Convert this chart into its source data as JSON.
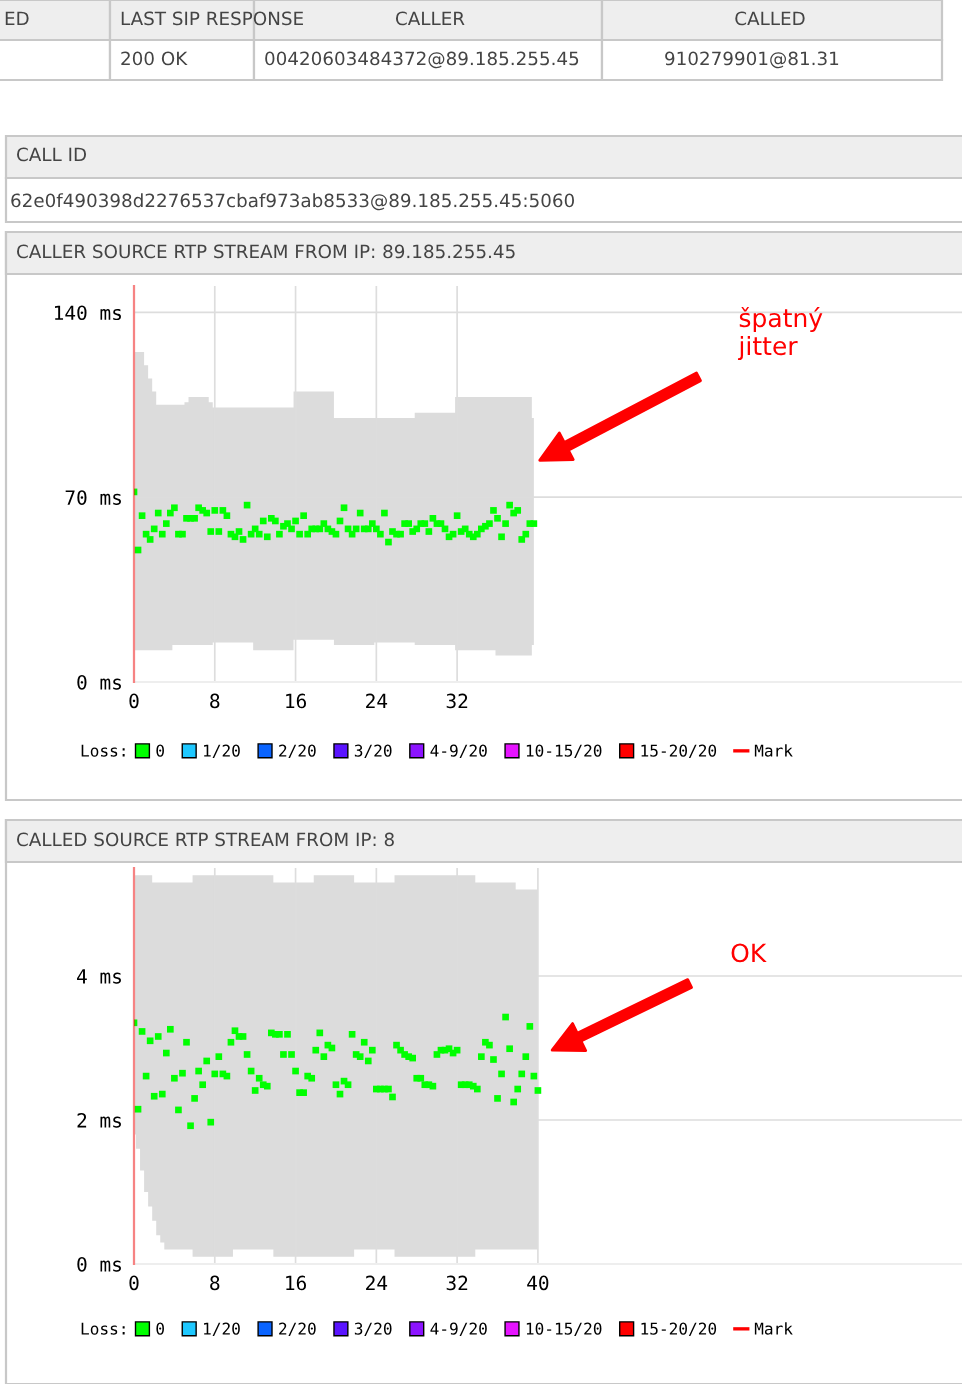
{
  "chart_data": [
    {
      "type": "other",
      "annotations": [
        "ED",
        "LAST SIP RESPONSE",
        "CALLER",
        "CALLED",
        "200 OK",
        "00420603484372@89.185.255.45",
        "910279901@81.31",
        "CALL ID",
        "62e0f490398d2276537cbaf973ab8533@89.185.255.45:5060"
      ]
    },
    {
      "type": "scatter",
      "title": "CALLER SOURCE RTP STREAM FROM IP: 89.185.255.45",
      "grid": true,
      "legend": "bottom",
      "legend_title": "Loss:",
      "xlim": [
        0,
        82
      ],
      "xticks": [
        0,
        8,
        16,
        24,
        32
      ],
      "ylim": [
        0,
        150
      ],
      "yticks": [
        {
          "value": 0,
          "label": "0 ms"
        },
        {
          "value": 70,
          "label": "70 ms"
        },
        {
          "value": 140,
          "label": "140 ms"
        }
      ],
      "ref_lines": [
        {
          "axis": "x",
          "value": 0,
          "label": "Mark",
          "color": "#ff0000"
        }
      ],
      "annotations": [
        "špatný jitter"
      ],
      "series": [
        {
          "name": "0",
          "color": "#00ff00",
          "marker": "square",
          "lower": [
            12,
            12,
            12,
            12,
            12,
            12,
            12,
            12,
            12,
            12,
            14,
            14,
            14,
            14,
            14,
            14,
            14,
            14,
            14,
            14,
            15,
            15,
            15,
            15,
            15,
            15,
            15,
            15,
            15,
            15,
            12,
            12,
            12,
            12,
            12,
            12,
            12,
            12,
            12,
            12,
            16,
            16,
            16,
            16,
            16,
            16,
            16,
            16,
            16,
            16,
            14,
            14,
            14,
            14,
            14,
            14,
            14,
            14,
            14,
            14,
            15,
            15,
            15,
            15,
            15,
            15,
            15,
            15,
            15,
            15,
            14,
            14,
            14,
            14,
            14,
            14,
            14,
            14,
            14,
            14,
            12,
            12,
            12,
            12,
            12,
            12,
            12,
            12,
            12,
            12,
            10,
            10,
            10,
            10,
            10,
            10,
            10,
            10,
            10,
            14
          ],
          "upper": [
            125,
            125,
            125,
            120,
            115,
            110,
            105,
            105,
            105,
            105,
            105,
            105,
            105,
            106,
            108,
            108,
            108,
            108,
            108,
            106,
            104,
            104,
            104,
            104,
            104,
            104,
            104,
            104,
            104,
            104,
            104,
            104,
            104,
            104,
            104,
            104,
            104,
            104,
            104,
            104,
            110,
            110,
            110,
            110,
            110,
            110,
            110,
            110,
            110,
            110,
            100,
            100,
            100,
            100,
            100,
            100,
            100,
            100,
            100,
            100,
            100,
            100,
            100,
            100,
            100,
            100,
            100,
            100,
            100,
            100,
            102,
            102,
            102,
            102,
            102,
            102,
            102,
            102,
            102,
            102,
            108,
            108,
            108,
            108,
            108,
            108,
            108,
            108,
            108,
            108,
            108,
            108,
            108,
            108,
            108,
            108,
            108,
            108,
            108,
            100
          ],
          "x": [
            0,
            0.4,
            0.8,
            1.2,
            1.6,
            2,
            2.4,
            2.8,
            3.2,
            3.6,
            4,
            4.4,
            4.8,
            5.2,
            5.6,
            6,
            6.4,
            6.8,
            7.2,
            7.6,
            8,
            8.4,
            8.8,
            9.2,
            9.6,
            10,
            10.4,
            10.8,
            11.2,
            11.6,
            12,
            12.4,
            12.8,
            13.2,
            13.6,
            14,
            14.4,
            14.8,
            15.2,
            15.6,
            16,
            16.4,
            16.8,
            17.2,
            17.6,
            18,
            18.4,
            18.8,
            19.2,
            19.6,
            20,
            20.4,
            20.8,
            21.2,
            21.6,
            22,
            22.4,
            22.8,
            23.2,
            23.6,
            24,
            24.4,
            24.8,
            25.2,
            25.6,
            26,
            26.4,
            26.8,
            27.2,
            27.6,
            28,
            28.4,
            28.8,
            29.2,
            29.6,
            30,
            30.4,
            30.8,
            31.2,
            31.6,
            32,
            32.4,
            32.8,
            33.2,
            33.6,
            34,
            34.4,
            34.8,
            35.2,
            35.6,
            36,
            36.4,
            36.8,
            37.2,
            37.6,
            38,
            38.4,
            38.8,
            39.2,
            39.6
          ],
          "values": [
            72,
            50,
            63,
            56,
            54,
            58,
            64,
            56,
            60,
            64,
            66,
            56,
            56,
            62,
            62,
            62,
            66,
            65,
            64,
            57,
            65,
            57,
            65,
            63,
            56,
            55,
            57,
            54,
            67,
            56,
            58,
            56,
            61,
            55,
            62,
            61,
            56,
            59,
            60,
            58,
            61,
            56,
            63,
            56,
            58,
            58,
            58,
            60,
            58,
            57,
            56,
            61,
            66,
            58,
            56,
            58,
            64,
            58,
            58,
            60,
            58,
            56,
            64,
            53,
            57,
            56,
            56,
            60,
            60,
            57,
            58,
            60,
            60,
            57,
            62,
            60,
            60,
            58,
            55,
            56,
            63,
            57,
            58,
            56,
            55,
            56,
            58,
            59,
            60,
            65,
            62,
            55,
            60,
            67,
            64,
            65,
            54,
            56,
            60,
            60
          ]
        },
        {
          "name": "1/20",
          "color": "#1ec8ff"
        },
        {
          "name": "2/20",
          "color": "#0a64ff"
        },
        {
          "name": "3/20",
          "color": "#5a14ff"
        },
        {
          "name": "4-9/20",
          "color": "#8c14ff"
        },
        {
          "name": "10-15/20",
          "color": "#e614ff"
        },
        {
          "name": "15-20/20",
          "color": "#ff0000"
        }
      ]
    },
    {
      "type": "scatter",
      "title": "CALLED SOURCE RTP STREAM FROM IP: 8",
      "grid": true,
      "legend": "bottom",
      "legend_title": "Loss:",
      "xlim": [
        0,
        82
      ],
      "xticks": [
        0,
        8,
        16,
        24,
        32,
        40
      ],
      "ylim": [
        0,
        5.5
      ],
      "yticks": [
        {
          "value": 0,
          "label": "0 ms"
        },
        {
          "value": 2,
          "label": "2 ms"
        },
        {
          "value": 4,
          "label": "4 ms"
        }
      ],
      "ref_lines": [
        {
          "axis": "x",
          "value": 0,
          "label": "Mark",
          "color": "#ff0000"
        }
      ],
      "annotations": [
        "OK"
      ],
      "series": [
        {
          "name": "0",
          "color": "#00ff00",
          "marker": "square",
          "lower": [
            1.8,
            1.6,
            1.3,
            1,
            0.8,
            0.6,
            0.4,
            0.3,
            0.2,
            0.2,
            0.2,
            0.2,
            0.2,
            0.2,
            0.2,
            0.1,
            0.1,
            0.1,
            0.1,
            0.1,
            0.1,
            0.1,
            0.1,
            0.1,
            0.1,
            0.2,
            0.2,
            0.2,
            0.2,
            0.2,
            0.2,
            0.2,
            0.2,
            0.2,
            0.2,
            0.1,
            0.1,
            0.1,
            0.1,
            0.1,
            0.1,
            0.1,
            0.1,
            0.1,
            0.1,
            0.1,
            0.1,
            0.1,
            0.1,
            0.1,
            0.1,
            0.1,
            0.1,
            0.1,
            0.1,
            0.2,
            0.2,
            0.2,
            0.2,
            0.2,
            0.2,
            0.2,
            0.2,
            0.2,
            0.2,
            0.1,
            0.1,
            0.1,
            0.1,
            0.1,
            0.1,
            0.1,
            0.1,
            0.1,
            0.1,
            0.1,
            0.1,
            0.1,
            0.1,
            0.1,
            0.1,
            0.1,
            0.1,
            0.1,
            0.1,
            0.2,
            0.2,
            0.2,
            0.2,
            0.2,
            0.2,
            0.2,
            0.2,
            0.2,
            0.2,
            0.2,
            0.2,
            0.2,
            0.2,
            0.2,
            0.2
          ],
          "upper": [
            5.4,
            5.4,
            5.4,
            5.4,
            5.4,
            5.3,
            5.3,
            5.3,
            5.3,
            5.3,
            5.3,
            5.3,
            5.3,
            5.3,
            5.3,
            5.4,
            5.4,
            5.4,
            5.4,
            5.4,
            5.4,
            5.4,
            5.4,
            5.4,
            5.4,
            5.4,
            5.4,
            5.4,
            5.4,
            5.4,
            5.4,
            5.4,
            5.4,
            5.4,
            5.4,
            5.3,
            5.3,
            5.3,
            5.3,
            5.3,
            5.3,
            5.3,
            5.3,
            5.3,
            5.3,
            5.4,
            5.4,
            5.4,
            5.4,
            5.4,
            5.4,
            5.4,
            5.4,
            5.4,
            5.4,
            5.3,
            5.3,
            5.3,
            5.3,
            5.3,
            5.3,
            5.3,
            5.3,
            5.3,
            5.3,
            5.4,
            5.4,
            5.4,
            5.4,
            5.4,
            5.4,
            5.4,
            5.4,
            5.4,
            5.4,
            5.4,
            5.4,
            5.4,
            5.4,
            5.4,
            5.4,
            5.4,
            5.4,
            5.4,
            5.4,
            5.3,
            5.3,
            5.3,
            5.3,
            5.3,
            5.3,
            5.3,
            5.3,
            5.3,
            5.3,
            5.2,
            5.2,
            5.2,
            5.2,
            5.2,
            5.2
          ],
          "x": [
            0,
            0.4,
            0.8,
            1.2,
            1.6,
            2,
            2.4,
            2.8,
            3.2,
            3.6,
            4,
            4.4,
            4.8,
            5.2,
            5.6,
            6,
            6.4,
            6.8,
            7.2,
            7.6,
            8,
            8.4,
            8.8,
            9.2,
            9.6,
            10,
            10.4,
            10.8,
            11.2,
            11.6,
            12,
            12.4,
            12.8,
            13.2,
            13.6,
            14,
            14.4,
            14.8,
            15.2,
            15.6,
            16,
            16.4,
            16.8,
            17.2,
            17.6,
            18,
            18.4,
            18.8,
            19.2,
            19.6,
            20,
            20.4,
            20.8,
            21.2,
            21.6,
            22,
            22.4,
            22.8,
            23.2,
            23.6,
            24,
            24.4,
            24.8,
            25.2,
            25.6,
            26,
            26.4,
            26.8,
            27.2,
            27.6,
            28,
            28.4,
            28.8,
            29.2,
            29.6,
            30,
            30.4,
            30.8,
            31.2,
            31.6,
            32,
            32.4,
            32.8,
            33.2,
            33.6,
            34,
            34.4,
            34.8,
            35.2,
            35.6,
            36,
            36.4,
            36.8,
            37.2,
            37.6,
            38,
            38.4,
            38.8,
            39.2,
            39.6,
            40
          ],
          "values": [
            3.35,
            2.15,
            3.23,
            2.61,
            3.1,
            2.33,
            3.16,
            2.36,
            2.93,
            3.26,
            2.58,
            2.14,
            2.65,
            3.08,
            1.92,
            2.3,
            2.68,
            2.49,
            2.82,
            1.97,
            2.64,
            2.88,
            2.64,
            2.61,
            3.08,
            3.24,
            3.16,
            3.16,
            2.91,
            2.68,
            2.41,
            2.58,
            2.49,
            2.47,
            3.21,
            3.19,
            3.19,
            2.91,
            3.19,
            2.91,
            2.68,
            2.38,
            2.38,
            2.61,
            2.58,
            2.97,
            3.21,
            2.88,
            3.04,
            3.0,
            2.49,
            2.36,
            2.54,
            2.49,
            3.19,
            2.91,
            2.88,
            3.08,
            2.82,
            2.97,
            2.43,
            2.43,
            2.43,
            2.43,
            2.32,
            3.04,
            2.97,
            2.91,
            2.88,
            2.86,
            2.58,
            2.58,
            2.49,
            2.49,
            2.47,
            2.91,
            2.97,
            2.97,
            2.99,
            2.93,
            2.97,
            2.49,
            2.49,
            2.49,
            2.47,
            2.43,
            2.88,
            3.08,
            3.04,
            2.84,
            2.3,
            2.64,
            3.43,
            2.99,
            2.25,
            2.43,
            2.64,
            2.88,
            3.3,
            2.61,
            2.41
          ]
        },
        {
          "name": "1/20",
          "color": "#1ec8ff"
        },
        {
          "name": "2/20",
          "color": "#0a64ff"
        },
        {
          "name": "3/20",
          "color": "#5a14ff"
        },
        {
          "name": "4-9/20",
          "color": "#8c14ff"
        },
        {
          "name": "10-15/20",
          "color": "#e614ff"
        },
        {
          "name": "15-20/20",
          "color": "#ff0000"
        }
      ]
    }
  ]
}
